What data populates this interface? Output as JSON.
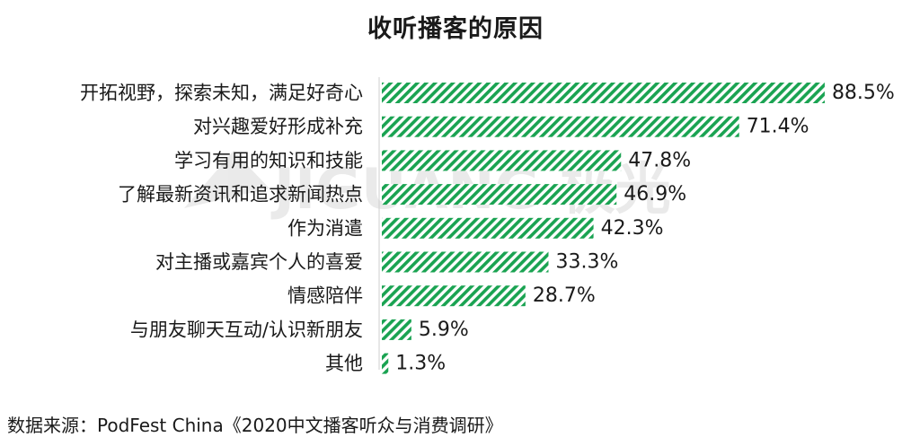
{
  "chart_data": {
    "type": "bar",
    "orientation": "horizontal",
    "title": "收听播客的原因",
    "categories": [
      "开拓视野，探索未知，满足好奇心",
      "对兴趣爱好形成补充",
      "学习有用的知识和技能",
      "了解最新资讯和追求新闻热点",
      "作为消遣",
      "对主播或嘉宾个人的喜爱",
      "情感陪伴",
      "与朋友聊天互动/认识新朋友",
      "其他"
    ],
    "values": [
      88.5,
      71.4,
      47.8,
      46.9,
      42.3,
      33.3,
      28.7,
      5.9,
      1.3
    ],
    "value_labels": [
      "88.5%",
      "71.4%",
      "47.8%",
      "46.9%",
      "42.3%",
      "33.3%",
      "28.7%",
      "5.9%",
      "1.3%"
    ],
    "unit": "%",
    "xlim": [
      0,
      100
    ],
    "grid": false,
    "legend": "none",
    "bar_color": "#1aa352",
    "bar_pattern": "diagonal-stripes"
  },
  "source": "数据来源：PodFest China《2020中文播客听众与消费调研》",
  "watermark": "JIGUANG 极光"
}
